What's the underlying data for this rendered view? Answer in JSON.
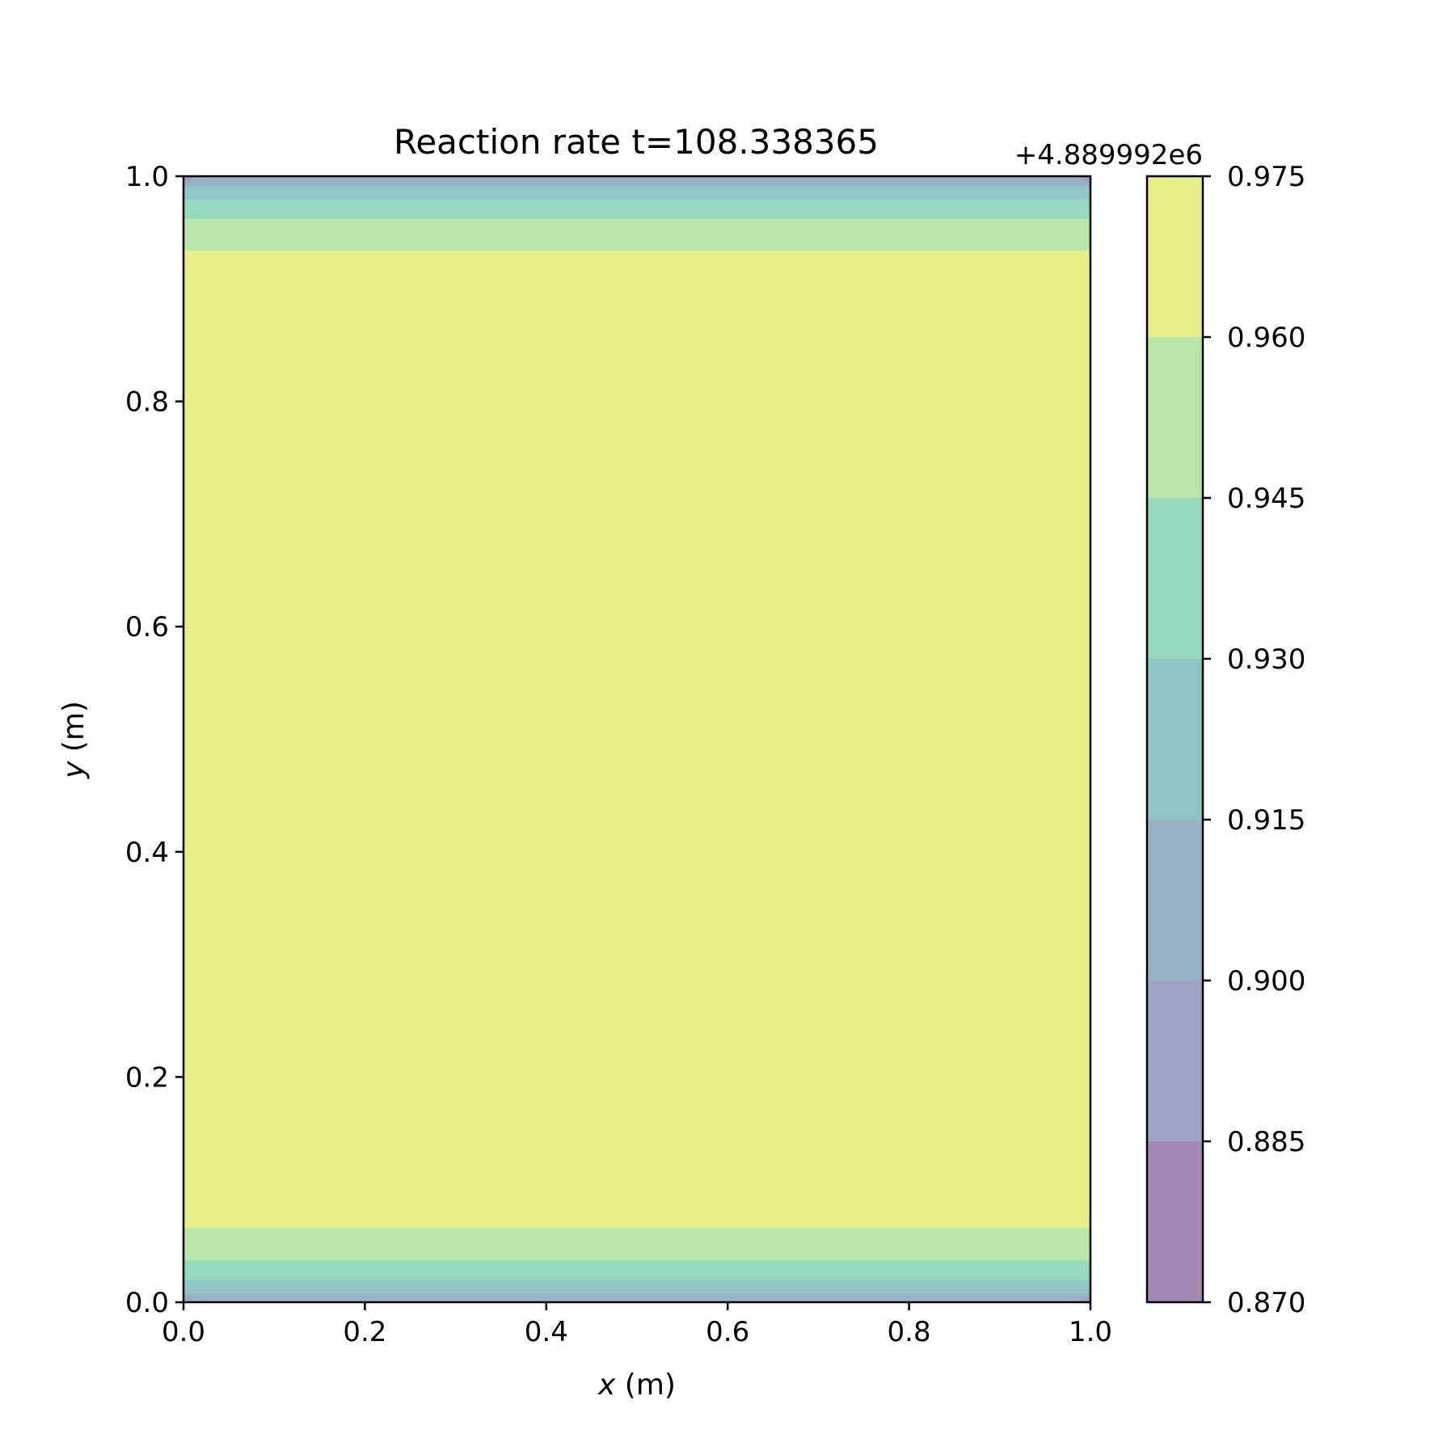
{
  "chart_data": {
    "type": "heatmap",
    "subtype": "filled-contour",
    "title": "Reaction rate t=108.338365",
    "xlabel_var": "x",
    "xlabel_unit": " (m)",
    "ylabel_var": "y",
    "ylabel_unit": " (m)",
    "xlim": [
      0.0,
      1.0
    ],
    "ylim": [
      0.0,
      1.0
    ],
    "x_ticks": [
      "0.0",
      "0.2",
      "0.4",
      "0.6",
      "0.8",
      "1.0"
    ],
    "y_ticks": [
      "0.0",
      "0.2",
      "0.4",
      "0.6",
      "0.8",
      "1.0"
    ],
    "colorbar": {
      "offset_label": "+4.889992e6",
      "levels": [
        0.87,
        0.885,
        0.9,
        0.915,
        0.93,
        0.945,
        0.96,
        0.975
      ],
      "tick_labels": [
        "0.870",
        "0.885",
        "0.900",
        "0.915",
        "0.930",
        "0.945",
        "0.960",
        "0.975"
      ],
      "colors": [
        "#a28ab3",
        "#a1a3c2",
        "#97b2c4",
        "#8fc5c2",
        "#96d9bd",
        "#b8e6a9",
        "#e8ed8b"
      ]
    },
    "contour_bands_y": [
      {
        "level_index": 6,
        "y_range": [
          0.066,
          0.934
        ]
      },
      {
        "level_index": 5,
        "y_range": [
          0.037,
          0.066
        ]
      },
      {
        "level_index": 5,
        "y_range": [
          0.934,
          0.962
        ]
      },
      {
        "level_index": 4,
        "y_range": [
          0.02,
          0.037
        ]
      },
      {
        "level_index": 4,
        "y_range": [
          0.962,
          0.979
        ]
      },
      {
        "level_index": 3,
        "y_range": [
          0.008,
          0.02
        ]
      },
      {
        "level_index": 3,
        "y_range": [
          0.979,
          0.991
        ]
      },
      {
        "level_index": 2,
        "y_range": [
          0.0,
          0.008
        ]
      },
      {
        "level_index": 2,
        "y_range": [
          0.991,
          1.0
        ]
      }
    ],
    "grid": false
  }
}
